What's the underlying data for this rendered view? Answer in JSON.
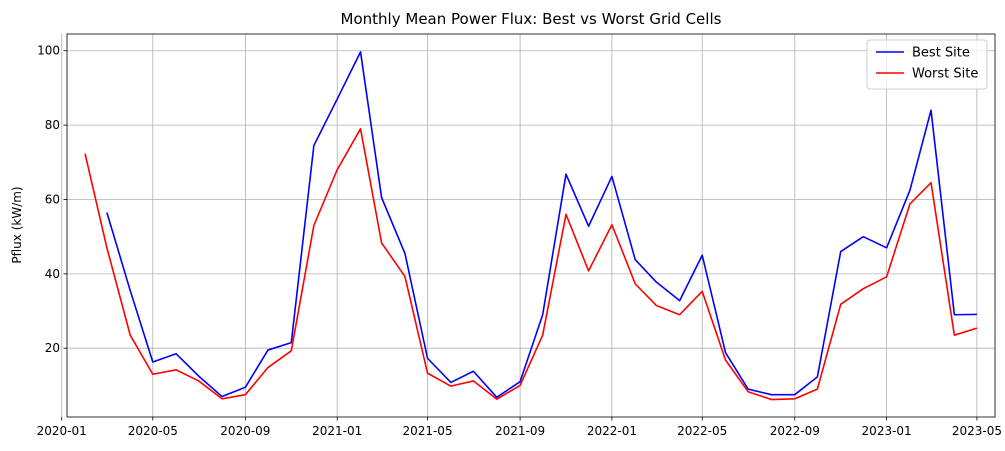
{
  "chart_data": {
    "type": "line",
    "title": "Monthly Mean Power Flux: Best vs Worst Grid Cells",
    "xlabel": "",
    "ylabel": "Pflux (kW/m)",
    "ylim": [
      1.5,
      104.5
    ],
    "xlim": [
      "2020-01-08",
      "2023-05-25"
    ],
    "y_ticks": [
      20,
      40,
      60,
      80,
      100
    ],
    "x_ticks": [
      "2020-01",
      "2020-05",
      "2020-09",
      "2021-01",
      "2021-05",
      "2021-09",
      "2022-01",
      "2022-05",
      "2022-09",
      "2023-01",
      "2023-05"
    ],
    "grid": true,
    "legend_position": "top-right",
    "series": [
      {
        "name": "Best Site",
        "color": "#0000ff",
        "points": [
          [
            "2020-03-01",
            56.5
          ],
          [
            "2020-04-01",
            35.5
          ],
          [
            "2020-05-01",
            16.3
          ],
          [
            "2020-06-01",
            18.5
          ],
          [
            "2020-07-01",
            12.5
          ],
          [
            "2020-08-01",
            7.0
          ],
          [
            "2020-09-01",
            9.5
          ],
          [
            "2020-10-01",
            19.5
          ],
          [
            "2020-11-01",
            21.5
          ],
          [
            "2020-12-01",
            74.5
          ],
          [
            "2021-01-01",
            87.0
          ],
          [
            "2021-02-01",
            99.7
          ],
          [
            "2021-03-01",
            60.5
          ],
          [
            "2021-04-01",
            45.5
          ],
          [
            "2021-05-01",
            17.3
          ],
          [
            "2021-06-01",
            10.8
          ],
          [
            "2021-07-01",
            13.8
          ],
          [
            "2021-08-01",
            6.8
          ],
          [
            "2021-09-01",
            11.0
          ],
          [
            "2021-10-01",
            29.0
          ],
          [
            "2021-11-01",
            66.8
          ],
          [
            "2021-12-01",
            52.8
          ],
          [
            "2022-01-01",
            66.2
          ],
          [
            "2022-02-01",
            43.8
          ],
          [
            "2022-03-01",
            37.8
          ],
          [
            "2022-04-01",
            32.8
          ],
          [
            "2022-05-01",
            45.0
          ],
          [
            "2022-06-01",
            18.8
          ],
          [
            "2022-07-01",
            9.0
          ],
          [
            "2022-08-01",
            7.5
          ],
          [
            "2022-09-01",
            7.5
          ],
          [
            "2022-10-01",
            12.3
          ],
          [
            "2022-11-01",
            46.0
          ],
          [
            "2022-12-01",
            50.0
          ],
          [
            "2023-01-01",
            47.0
          ],
          [
            "2023-02-01",
            62.5
          ],
          [
            "2023-03-01",
            84.0
          ],
          [
            "2023-04-01",
            29.0
          ],
          [
            "2023-05-01",
            29.1
          ]
        ]
      },
      {
        "name": "Worst Site",
        "color": "#ff0000",
        "points": [
          [
            "2020-02-01",
            72.3
          ],
          [
            "2020-03-01",
            47.0
          ],
          [
            "2020-04-01",
            23.5
          ],
          [
            "2020-05-01",
            13.0
          ],
          [
            "2020-06-01",
            14.2
          ],
          [
            "2020-07-01",
            11.2
          ],
          [
            "2020-08-01",
            6.4
          ],
          [
            "2020-09-01",
            7.5
          ],
          [
            "2020-10-01",
            14.8
          ],
          [
            "2020-11-01",
            19.3
          ],
          [
            "2020-12-01",
            53.0
          ],
          [
            "2021-01-01",
            68.0
          ],
          [
            "2021-02-01",
            79.0
          ],
          [
            "2021-03-01",
            48.3
          ],
          [
            "2021-04-01",
            39.3
          ],
          [
            "2021-05-01",
            13.3
          ],
          [
            "2021-06-01",
            9.8
          ],
          [
            "2021-07-01",
            11.2
          ],
          [
            "2021-08-01",
            6.3
          ],
          [
            "2021-09-01",
            10.0
          ],
          [
            "2021-10-01",
            23.5
          ],
          [
            "2021-11-01",
            56.0
          ],
          [
            "2021-12-01",
            40.8
          ],
          [
            "2022-01-01",
            53.2
          ],
          [
            "2022-02-01",
            37.3
          ],
          [
            "2022-03-01",
            31.5
          ],
          [
            "2022-04-01",
            29.0
          ],
          [
            "2022-05-01",
            35.3
          ],
          [
            "2022-06-01",
            16.8
          ],
          [
            "2022-07-01",
            8.3
          ],
          [
            "2022-08-01",
            6.2
          ],
          [
            "2022-09-01",
            6.4
          ],
          [
            "2022-10-01",
            9.0
          ],
          [
            "2022-11-01",
            31.8
          ],
          [
            "2022-12-01",
            36.0
          ],
          [
            "2023-01-01",
            39.2
          ],
          [
            "2023-02-01",
            58.8
          ],
          [
            "2023-03-01",
            64.5
          ],
          [
            "2023-04-01",
            23.5
          ],
          [
            "2023-05-01",
            25.4
          ]
        ]
      }
    ]
  }
}
